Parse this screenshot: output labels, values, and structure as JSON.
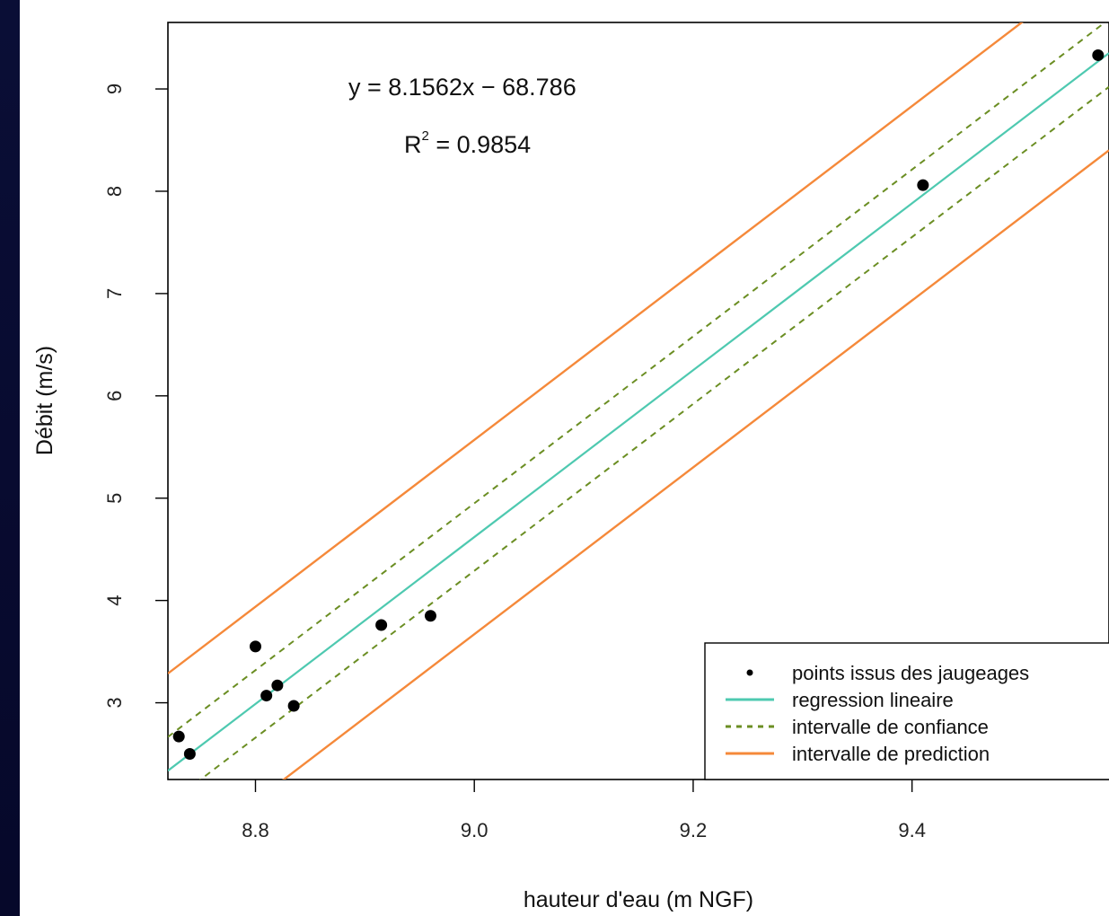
{
  "chart_data": {
    "type": "scatter",
    "xlabel": "hauteur d'eau (m NGF)",
    "ylabel": "Débit (m/s)",
    "xlim": [
      8.72,
      9.58
    ],
    "ylim": [
      2.25,
      9.65
    ],
    "x_ticks": [
      {
        "value": 8.8,
        "label": "8.8"
      },
      {
        "value": 9.0,
        "label": "9.0"
      },
      {
        "value": 9.2,
        "label": "9.2"
      },
      {
        "value": 9.4,
        "label": "9.4"
      }
    ],
    "y_ticks": [
      {
        "value": 3,
        "label": "3"
      },
      {
        "value": 4,
        "label": "4"
      },
      {
        "value": 5,
        "label": "5"
      },
      {
        "value": 6,
        "label": "6"
      },
      {
        "value": 7,
        "label": "7"
      },
      {
        "value": 8,
        "label": "8"
      },
      {
        "value": 9,
        "label": "9"
      }
    ],
    "annotations": {
      "equation": "y = 8.1562x − 68.786",
      "r2_label": "R",
      "r2_exp": "2",
      "r2_value": " = 0.9854"
    },
    "regression": {
      "slope": 8.1562,
      "intercept": -68.786
    },
    "confidence_offset": 0.33,
    "prediction_offset": 0.95,
    "points": [
      {
        "x": 8.73,
        "y": 2.67
      },
      {
        "x": 8.74,
        "y": 2.5
      },
      {
        "x": 8.8,
        "y": 3.55
      },
      {
        "x": 8.81,
        "y": 3.07
      },
      {
        "x": 8.82,
        "y": 3.17
      },
      {
        "x": 8.835,
        "y": 2.97
      },
      {
        "x": 8.915,
        "y": 3.76
      },
      {
        "x": 8.96,
        "y": 3.85
      },
      {
        "x": 9.41,
        "y": 8.06
      },
      {
        "x": 9.57,
        "y": 9.33
      }
    ],
    "legend": {
      "placement": "bottom-right",
      "entries": [
        {
          "name": "points issus des jaugeages",
          "kind": "points"
        },
        {
          "name": "regression lineaire",
          "kind": "regression"
        },
        {
          "name": "intervalle de confiance",
          "kind": "confidence"
        },
        {
          "name": "intervalle de prediction",
          "kind": "prediction"
        }
      ]
    },
    "colors": {
      "points": "#000000",
      "regression": "#4ec9b0",
      "confidence": "#6b8e23",
      "prediction": "#f5893a"
    }
  }
}
